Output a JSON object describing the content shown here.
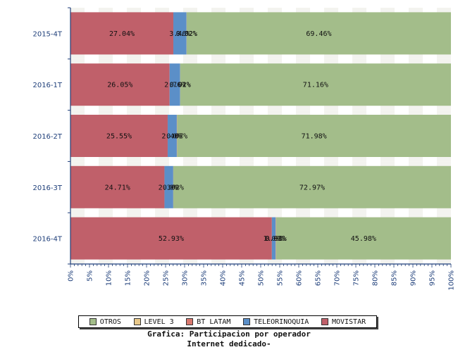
{
  "chart_data": {
    "type": "bar",
    "orientation": "horizontal",
    "stacked": true,
    "categories": [
      "2015-4T",
      "2016-1T",
      "2016-2T",
      "2016-3T",
      "2016-4T"
    ],
    "series": [
      {
        "name": "MOVISTAR",
        "color": "#c0606a",
        "values": [
          27.04,
          26.05,
          25.55,
          24.71,
          52.93
        ],
        "labels": [
          "27.04%",
          "26.05%",
          "25.55%",
          "24.71%",
          "52.93%"
        ]
      },
      {
        "name": "TELEORINOQUIA",
        "color": "#5b8fc8",
        "values": [
          3.46,
          2.76,
          2.4,
          2.3,
          1.0
        ],
        "labels": [
          "3.46%",
          "2.76%",
          "2.40%",
          "2.30%",
          "1.00%"
        ]
      },
      {
        "name": "BT LATAM",
        "color": "#d9786e",
        "values": [
          0.02,
          0.02,
          0.07,
          0.02,
          0.08
        ],
        "labels": [
          "0.02%",
          "0.02%",
          "0.07%",
          "0.02%",
          "0.08%"
        ]
      },
      {
        "name": "LEVEL 3",
        "color": "#e8c88a",
        "values": [
          0.02,
          0.01,
          0.0,
          0.0,
          0.01
        ],
        "labels": [
          "0.02%",
          "0.01%",
          "0%",
          "0%",
          "0.01%"
        ]
      },
      {
        "name": "OTROS",
        "color": "#a3bd8a",
        "values": [
          69.46,
          71.16,
          71.98,
          72.97,
          45.98
        ],
        "labels": [
          "69.46%",
          "71.16%",
          "71.98%",
          "72.97%",
          "45.98%"
        ]
      }
    ],
    "xlim": [
      0,
      100
    ],
    "x_ticks": [
      "0%",
      "5%",
      "10%",
      "15%",
      "20%",
      "25%",
      "30%",
      "35%",
      "40%",
      "45%",
      "50%",
      "55%",
      "60%",
      "65%",
      "70%",
      "75%",
      "80%",
      "85%",
      "90%",
      "95%",
      "100%"
    ],
    "legend_order": [
      "OTROS",
      "LEVEL 3",
      "BT LATAM",
      "TELEORINOQUIA",
      "MOVISTAR"
    ],
    "legend_position": "bottom",
    "grid": true
  },
  "caption": {
    "line1": "Grafica: Participacion por operador",
    "line2": "Internet dedicado-"
  }
}
